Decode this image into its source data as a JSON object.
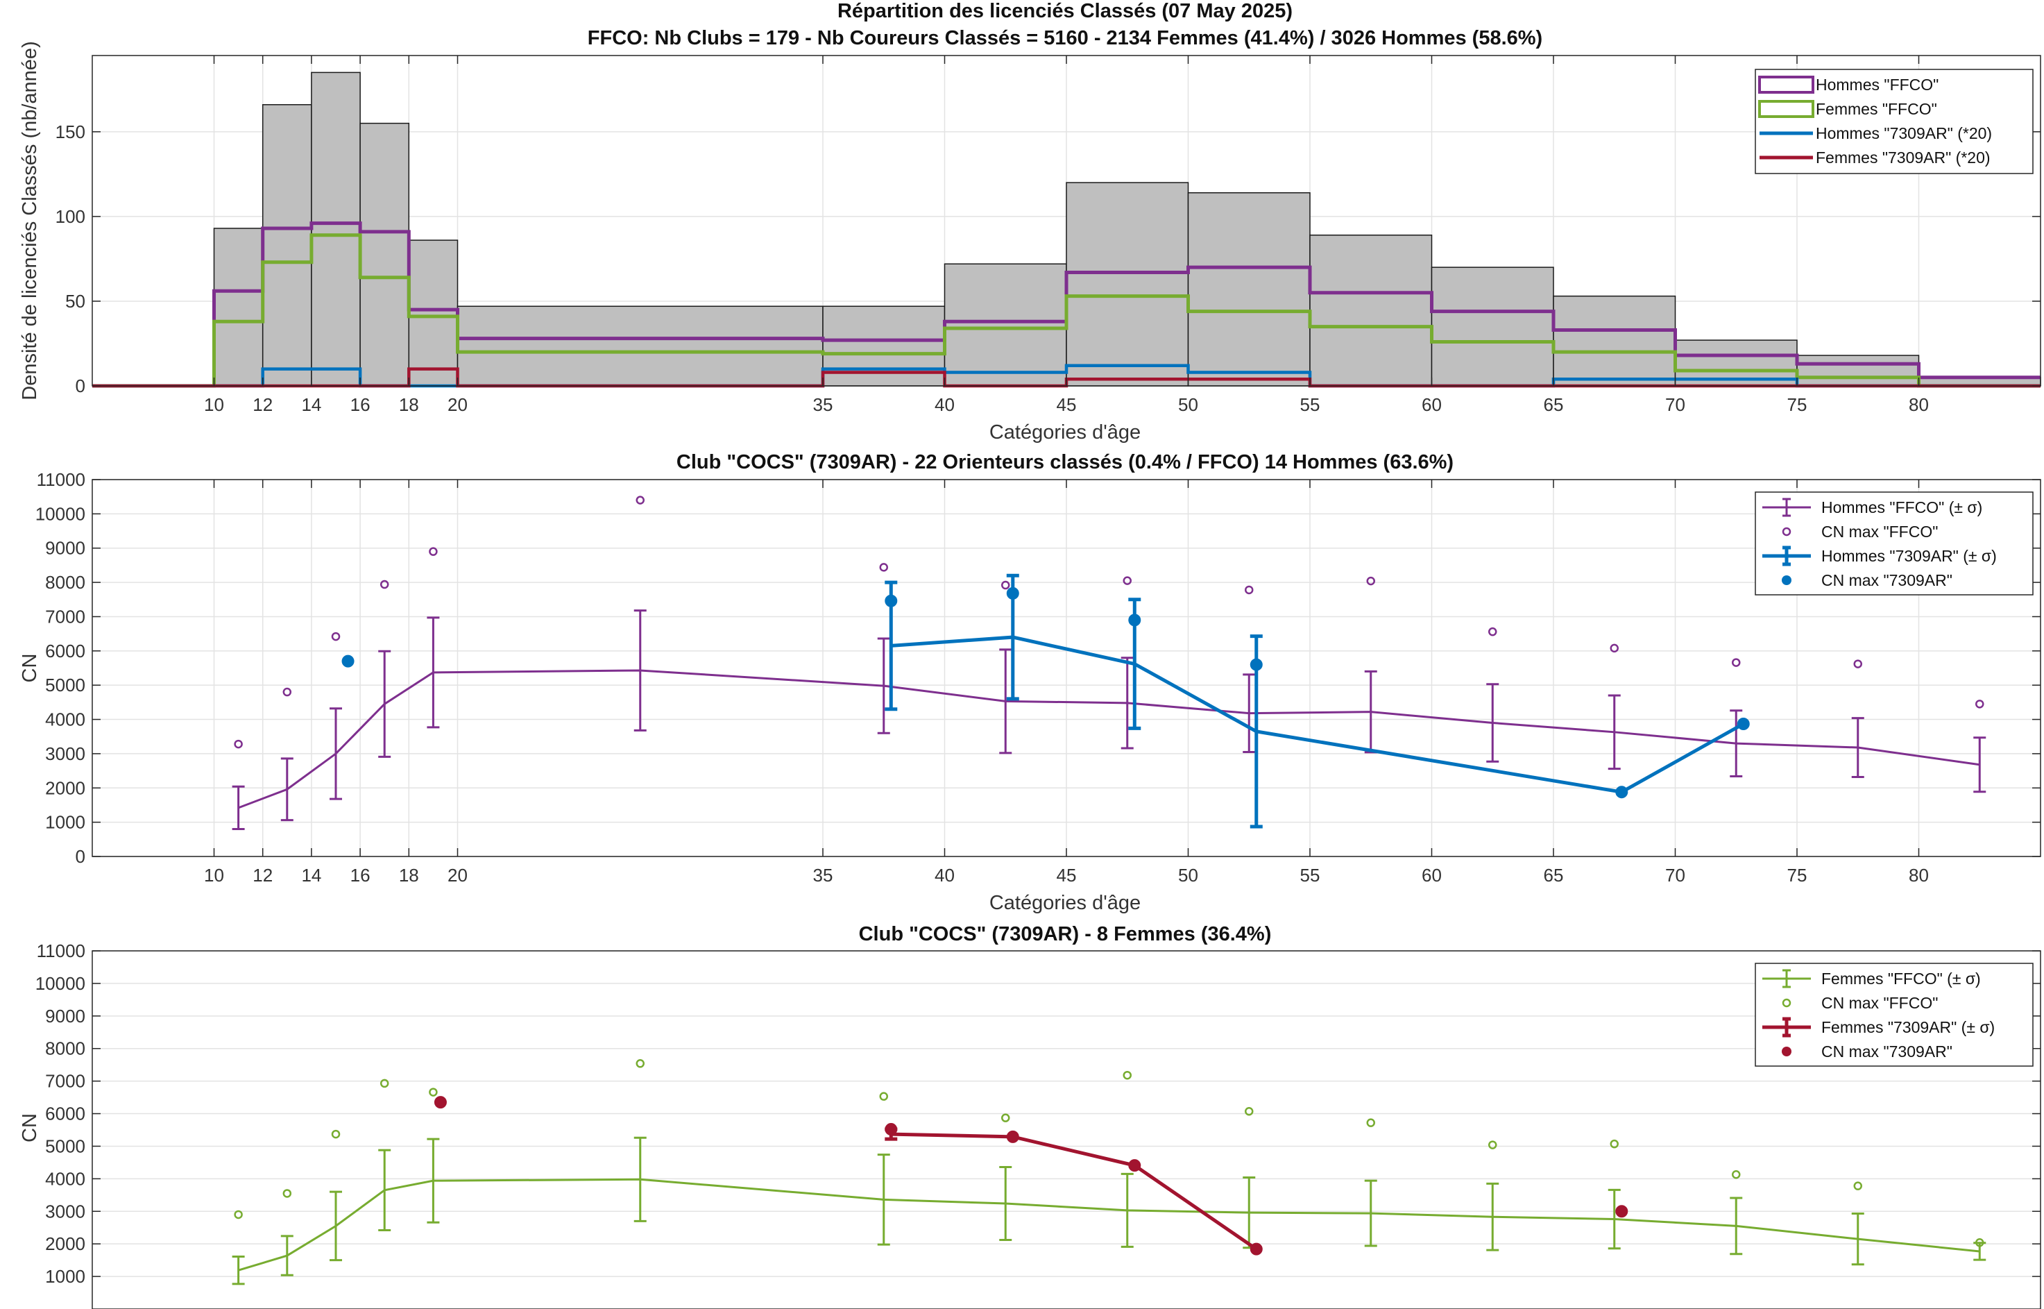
{
  "chart_data": [
    {
      "type": "histogram",
      "title": "Répartition des licenciés Classés (07 May 2025)",
      "subtitle": "FFCO: Nb Clubs = 179   -   Nb Coureurs Classés = 5160   -   2134 Femmes (41.4%) / 3026 Hommes (58.6%)",
      "xlabel": "Catégories d'âge",
      "ylabel": "Densité de licenciés Classés (nb/année)",
      "xlim": [
        5,
        85
      ],
      "ylim": [
        0,
        195
      ],
      "xticks": [
        10,
        12,
        14,
        16,
        18,
        20,
        35,
        40,
        45,
        50,
        55,
        60,
        65,
        70,
        75,
        80
      ],
      "yticks": [
        0,
        50,
        100,
        150
      ],
      "grid": true,
      "legend_position": "top-right",
      "edges": [
        10,
        12,
        14,
        16,
        18,
        20,
        35,
        40,
        45,
        50,
        55,
        60,
        65,
        70,
        75,
        80,
        85
      ],
      "total": [
        93,
        166,
        185,
        155,
        86,
        47,
        47,
        72,
        120,
        114,
        89,
        70,
        53,
        27,
        18,
        5
      ],
      "series": [
        {
          "name": "Hommes \"FFCO\"",
          "color": "#7E2F8E",
          "values": [
            56,
            93,
            96,
            91,
            45,
            28,
            27,
            38,
            67,
            70,
            55,
            44,
            33,
            18,
            13,
            5
          ]
        },
        {
          "name": "Femmes \"FFCO\"",
          "color": "#77AC30",
          "values": [
            38,
            73,
            89,
            64,
            41,
            20,
            19,
            34,
            53,
            44,
            35,
            26,
            20,
            9,
            5,
            0
          ]
        },
        {
          "name": "Hommes \"7309AR\" (*20)",
          "color": "#0072BD",
          "values": [
            0,
            10,
            10,
            0,
            0,
            0,
            10,
            8,
            12,
            8,
            0,
            0,
            4,
            4,
            0,
            0
          ]
        },
        {
          "name": "Femmes \"7309AR\" (*20)",
          "color": "#A2142F",
          "values": [
            0,
            0,
            0,
            0,
            10,
            0,
            8,
            0,
            4,
            4,
            0,
            0,
            0,
            0,
            0,
            0
          ]
        }
      ]
    },
    {
      "type": "errorbar",
      "title": "Club \"COCS\" (7309AR)  -  22 Orienteurs classés (0.4% / FFCO)  14 Hommes (63.6%)",
      "xlabel": "Catégories d'âge",
      "ylabel": "CN",
      "xlim": [
        5,
        85
      ],
      "ylim": [
        0,
        11000
      ],
      "xticks": [
        10,
        12,
        14,
        16,
        18,
        20,
        35,
        40,
        45,
        50,
        55,
        60,
        65,
        70,
        75,
        80
      ],
      "yticks": [
        0,
        1000,
        2000,
        3000,
        4000,
        5000,
        6000,
        7000,
        8000,
        9000,
        10000,
        11000
      ],
      "grid": true,
      "legend_position": "top-right",
      "legend": [
        "Hommes \"FFCO\" (± σ)",
        "CN max \"FFCO\"",
        "Hommes \"7309AR\" (± σ)",
        "CN max \"7309AR\""
      ],
      "series": [
        {
          "name": "Hommes \"FFCO\"",
          "color": "#7E2F8E",
          "x": [
            11,
            13,
            15,
            17,
            19,
            27.5,
            37.5,
            42.5,
            47.5,
            52.5,
            57.5,
            62.5,
            67.5,
            72.5,
            77.5,
            82.5
          ],
          "y": [
            1420,
            1960,
            3000,
            4450,
            5370,
            5430,
            4980,
            4530,
            4480,
            4180,
            4220,
            3900,
            3630,
            3300,
            3180,
            2680
          ],
          "sigma": [
            620,
            900,
            1320,
            1540,
            1600,
            1750,
            1380,
            1510,
            1320,
            1130,
            1180,
            1130,
            1070,
            960,
            860,
            790
          ],
          "max_x": [
            11,
            13,
            15,
            17,
            19,
            27.5,
            37.5,
            42.5,
            47.5,
            52.5,
            57.5,
            62.5,
            67.5,
            72.5,
            77.5,
            82.5
          ],
          "max_y": [
            3280,
            4800,
            6420,
            7940,
            8900,
            10400,
            8440,
            7920,
            8050,
            7780,
            8040,
            6560,
            6080,
            5660,
            5620,
            4450
          ]
        },
        {
          "name": "Hommes \"7309AR\"",
          "color": "#0072BD",
          "x": [
            37.8,
            42.8,
            47.8,
            52.8,
            67.8,
            72.8
          ],
          "y": [
            6150,
            6400,
            5620,
            3650,
            1880,
            3870
          ],
          "sigma": [
            1850,
            1800,
            1880,
            2780,
            0,
            0
          ],
          "max_x": [
            37.8,
            42.8,
            47.8,
            52.8,
            67.8,
            72.8,
            15.5
          ],
          "max_y": [
            7460,
            7680,
            6900,
            5600,
            1880,
            3870,
            5700
          ]
        }
      ]
    },
    {
      "type": "errorbar",
      "title": "Club \"COCS\" (7309AR)  -  8 Femmes (36.4%)",
      "xlabel": "",
      "ylabel": "CN",
      "xlim": [
        5,
        85
      ],
      "ylim": [
        0,
        11000
      ],
      "yticks": [
        1000,
        2000,
        3000,
        4000,
        5000,
        6000,
        7000,
        8000,
        9000,
        10000,
        11000
      ],
      "grid": true,
      "legend_position": "top-right",
      "legend": [
        "Femmes \"FFCO\" (± σ)",
        "CN max \"FFCO\"",
        "Femmes \"7309AR\" (± σ)",
        "CN max \"7309AR\""
      ],
      "series": [
        {
          "name": "Femmes \"FFCO\"",
          "color": "#77AC30",
          "x": [
            11,
            13,
            15,
            17,
            19,
            27.5,
            37.5,
            42.5,
            47.5,
            52.5,
            57.5,
            62.5,
            67.5,
            72.5,
            77.5,
            82.5
          ],
          "y": [
            1190,
            1640,
            2550,
            3650,
            3940,
            3980,
            3360,
            3240,
            3030,
            2960,
            2940,
            2830,
            2760,
            2550,
            2150,
            1770
          ],
          "sigma": [
            420,
            600,
            1050,
            1230,
            1280,
            1280,
            1380,
            1120,
            1120,
            1080,
            1000,
            1020,
            900,
            860,
            780,
            260
          ],
          "max_x": [
            11,
            13,
            15,
            17,
            19,
            27.5,
            37.5,
            42.5,
            47.5,
            52.5,
            57.5,
            62.5,
            67.5,
            72.5,
            77.5,
            82.5
          ],
          "max_y": [
            2900,
            3550,
            5370,
            6930,
            6660,
            7540,
            6530,
            5870,
            7180,
            6070,
            5720,
            5040,
            5070,
            4130,
            3780,
            2040
          ]
        },
        {
          "name": "Femmes \"7309AR\"",
          "color": "#A2142F",
          "x": [
            37.8,
            42.8,
            47.8,
            52.8
          ],
          "y": [
            5370,
            5290,
            4410,
            1840
          ],
          "sigma": [
            150,
            0,
            0,
            0
          ],
          "max_x": [
            37.8,
            42.8,
            47.8,
            52.8,
            19.3,
            67.8
          ],
          "max_y": [
            5520,
            5290,
            4410,
            1840,
            6350,
            3000
          ]
        }
      ]
    }
  ]
}
